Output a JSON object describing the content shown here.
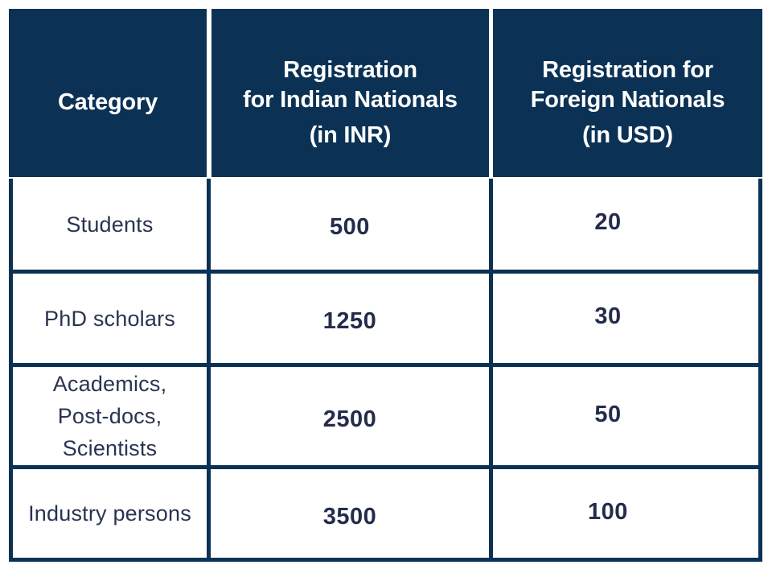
{
  "chart_data": {
    "type": "table",
    "columns": [
      "Category",
      "Registration for Indian Nationals (in INR)",
      "Registration for Foreign Nationals (in USD)"
    ],
    "rows": [
      [
        "Students",
        500,
        20
      ],
      [
        "PhD scholars",
        1250,
        30
      ],
      [
        "Academics, Post-docs, Scientists",
        2500,
        50
      ],
      [
        "Industry persons",
        3500,
        100
      ]
    ],
    "layout": "header row navy with white text; body white cells with thick navy grid borders; all text centered"
  },
  "header": {
    "category": "Category",
    "inr_title": "Registration\nfor Indian Nationals",
    "inr_unit": "(in INR)",
    "usd_title": "Registration for\nForeign Nationals",
    "usd_unit": "(in USD)"
  },
  "rows": [
    {
      "category": "Students",
      "inr": "500",
      "usd": "20"
    },
    {
      "category": "PhD scholars",
      "inr": "1250",
      "usd": "30"
    },
    {
      "category": "Academics,\nPost-docs,\nScientists",
      "inr": "2500",
      "usd": "50"
    },
    {
      "category": "Industry persons",
      "inr": "3500",
      "usd": "100"
    }
  ],
  "colors": {
    "header_background": "#0b3255",
    "header_text": "#ffffff",
    "grid_border": "#0b3255",
    "category_text": "#2b3351",
    "value_text": "#232c4a",
    "page_background": "#ffffff"
  }
}
